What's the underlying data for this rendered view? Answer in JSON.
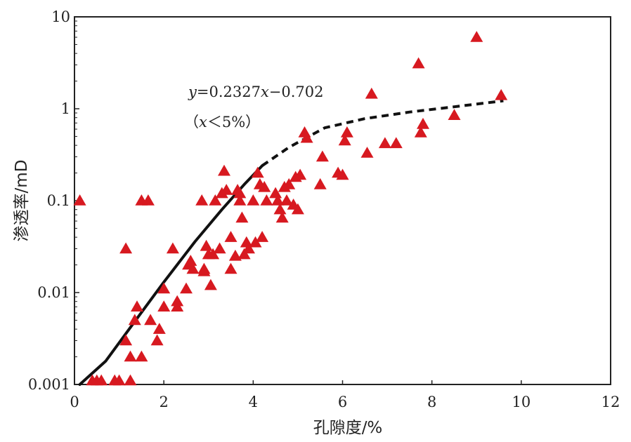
{
  "chart_data": {
    "type": "scatter",
    "xlabel": "孔隙度/%",
    "ylabel": "渗透率/mD",
    "xlim": [
      0,
      12
    ],
    "ylim": [
      0.001,
      10
    ],
    "yscale": "log",
    "x_ticks": [
      0,
      2,
      4,
      6,
      8,
      10,
      12
    ],
    "x_tick_labels": [
      "0",
      "2",
      "4",
      "6",
      "8",
      "10",
      "12"
    ],
    "y_ticks": [
      0.001,
      0.01,
      0.1,
      1,
      10
    ],
    "y_tick_labels": [
      "0.001",
      "0.01",
      "0.1",
      "1",
      "10"
    ],
    "grid": false,
    "annotation": {
      "equation_y": "y",
      "equation_mid": "=0.2327",
      "equation_x": "x",
      "equation_rest": "−0.702",
      "condition_open": "（",
      "condition_x": "x",
      "condition_rest": "＜5%）"
    },
    "fit_line": {
      "style": "solid then dashed",
      "solid_points": [
        [
          0.12,
          0.001
        ],
        [
          0.7,
          0.0018
        ],
        [
          1.3,
          0.0045
        ],
        [
          2.0,
          0.013
        ],
        [
          2.7,
          0.036
        ],
        [
          3.3,
          0.08
        ],
        [
          3.8,
          0.15
        ],
        [
          4.2,
          0.24
        ]
      ],
      "dashed_points": [
        [
          4.2,
          0.24
        ],
        [
          4.8,
          0.38
        ],
        [
          5.6,
          0.62
        ],
        [
          6.5,
          0.78
        ],
        [
          7.5,
          0.92
        ],
        [
          8.5,
          1.05
        ],
        [
          9.6,
          1.22
        ]
      ],
      "color": "#111111"
    },
    "marker": {
      "shape": "triangle",
      "color": "#d71920"
    },
    "points": [
      [
        0.12,
        0.1
      ],
      [
        0.4,
        0.0011
      ],
      [
        0.5,
        0.0011
      ],
      [
        0.6,
        0.0011
      ],
      [
        0.9,
        0.0011
      ],
      [
        1.0,
        0.0011
      ],
      [
        1.25,
        0.0011
      ],
      [
        1.15,
        0.03
      ],
      [
        1.15,
        0.003
      ],
      [
        1.25,
        0.002
      ],
      [
        1.35,
        0.005
      ],
      [
        1.4,
        0.007
      ],
      [
        1.5,
        0.002
      ],
      [
        1.5,
        0.1
      ],
      [
        1.65,
        0.1
      ],
      [
        1.7,
        0.005
      ],
      [
        1.85,
        0.003
      ],
      [
        1.9,
        0.004
      ],
      [
        2.0,
        0.011
      ],
      [
        2.0,
        0.007
      ],
      [
        2.2,
        0.03
      ],
      [
        2.3,
        0.007
      ],
      [
        2.3,
        0.008
      ],
      [
        2.5,
        0.011
      ],
      [
        2.55,
        0.02
      ],
      [
        2.6,
        0.022
      ],
      [
        2.65,
        0.018
      ],
      [
        2.85,
        0.1
      ],
      [
        2.9,
        0.018
      ],
      [
        2.9,
        0.017
      ],
      [
        2.95,
        0.032
      ],
      [
        3.0,
        0.026
      ],
      [
        3.05,
        0.012
      ],
      [
        3.1,
        0.026
      ],
      [
        3.15,
        0.1
      ],
      [
        3.25,
        0.03
      ],
      [
        3.3,
        0.12
      ],
      [
        3.35,
        0.21
      ],
      [
        3.4,
        0.13
      ],
      [
        3.5,
        0.04
      ],
      [
        3.5,
        0.018
      ],
      [
        3.6,
        0.025
      ],
      [
        3.65,
        0.13
      ],
      [
        3.7,
        0.12
      ],
      [
        3.7,
        0.1
      ],
      [
        3.75,
        0.065
      ],
      [
        3.8,
        0.026
      ],
      [
        3.85,
        0.035
      ],
      [
        3.9,
        0.03
      ],
      [
        4.0,
        0.1
      ],
      [
        4.05,
        0.035
      ],
      [
        4.1,
        0.2
      ],
      [
        4.15,
        0.15
      ],
      [
        4.2,
        0.04
      ],
      [
        4.25,
        0.14
      ],
      [
        4.3,
        0.1
      ],
      [
        4.5,
        0.12
      ],
      [
        4.55,
        0.1
      ],
      [
        4.6,
        0.08
      ],
      [
        4.65,
        0.065
      ],
      [
        4.7,
        0.14
      ],
      [
        4.75,
        0.1
      ],
      [
        4.8,
        0.15
      ],
      [
        4.9,
        0.09
      ],
      [
        4.95,
        0.18
      ],
      [
        5.0,
        0.08
      ],
      [
        5.05,
        0.19
      ],
      [
        5.15,
        0.55
      ],
      [
        5.2,
        0.48
      ],
      [
        5.5,
        0.15
      ],
      [
        5.55,
        0.3
      ],
      [
        5.9,
        0.2
      ],
      [
        6.0,
        0.19
      ],
      [
        6.05,
        0.45
      ],
      [
        6.1,
        0.55
      ],
      [
        6.55,
        0.33
      ],
      [
        6.65,
        1.45
      ],
      [
        6.95,
        0.42
      ],
      [
        7.2,
        0.42
      ],
      [
        7.7,
        3.1
      ],
      [
        7.75,
        0.55
      ],
      [
        7.8,
        0.68
      ],
      [
        8.5,
        0.85
      ],
      [
        9.0,
        6.0
      ],
      [
        9.55,
        1.4
      ]
    ]
  }
}
